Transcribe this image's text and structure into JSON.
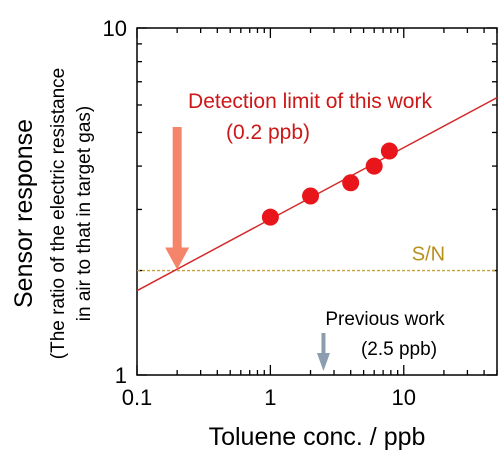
{
  "chart_data": {
    "type": "scatter",
    "x_scale": "log",
    "y_scale": "log",
    "xlim": [
      0.1,
      50
    ],
    "ylim": [
      1,
      10
    ],
    "xlabel": "Toluene conc. / ppb",
    "ylabel_lines": [
      "Sensor response",
      "(The ratio of the electric resistance",
      "in air to that in target gas)"
    ],
    "x_ticks": [
      {
        "value": 0.1,
        "label": "0.1"
      },
      {
        "value": 1,
        "label": "1"
      },
      {
        "value": 10,
        "label": "10"
      }
    ],
    "y_ticks": [
      {
        "value": 1,
        "label": "1"
      },
      {
        "value": 10,
        "label": "10"
      }
    ],
    "points": [
      {
        "x": 1,
        "y": 2.85
      },
      {
        "x": 2,
        "y": 3.28
      },
      {
        "x": 4,
        "y": 3.58
      },
      {
        "x": 6,
        "y": 4.0
      },
      {
        "x": 7.8,
        "y": 4.42
      }
    ],
    "fit_line": {
      "x": [
        0.1,
        50
      ],
      "y": [
        1.75,
        6.3
      ]
    },
    "sn_level": 2.0,
    "annotations": {
      "detection_line1": "Detection limit of this work",
      "detection_line2": "(0.2 ppb)",
      "detection_x": 0.2,
      "sn_label": "S/N",
      "previous_line1": "Previous work",
      "previous_line2": "(2.5 ppb)",
      "previous_x": 2.5
    },
    "colors": {
      "points": "#e8151b",
      "fit_line": "#d42a2a",
      "detection_text": "#cc1818",
      "detection_arrow": "#f4846a",
      "sn_line": "#c8a040",
      "sn_text": "#b8901e",
      "previous_arrow": "#8c9db0"
    }
  }
}
